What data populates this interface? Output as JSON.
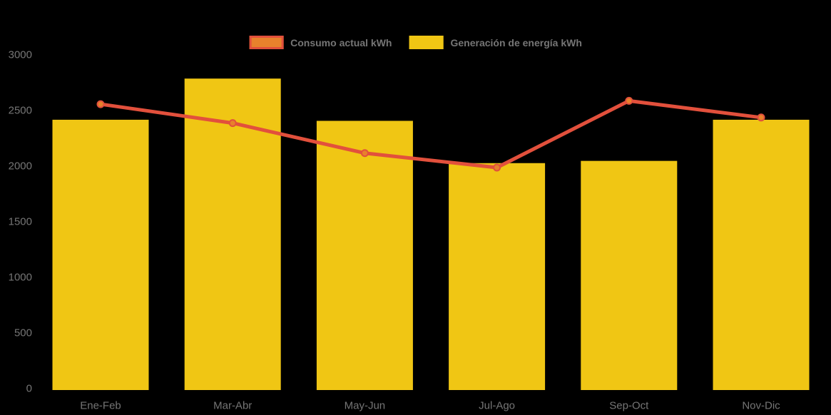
{
  "background_color": "#000000",
  "text_color": "#757575",
  "legend": {
    "items": [
      {
        "label": "Consumo actual kWh",
        "swatch_fill": "#E8812C",
        "swatch_border": "#E2503C"
      },
      {
        "label": "Generación de energía kWh",
        "swatch_fill": "#F0C614",
        "swatch_border": "#F0C614"
      }
    ]
  },
  "chart_data": {
    "type": "bar",
    "categories": [
      "Ene-Feb",
      "Mar-Abr",
      "May-Jun",
      "Jul-Ago",
      "Sep-Oct",
      "Nov-Dic"
    ],
    "series": [
      {
        "name": "Consumo actual kWh",
        "type": "line",
        "values": [
          2570,
          2400,
          2130,
          2000,
          2600,
          2450
        ],
        "line_color": "#E2503C",
        "marker_fill": "#E8812C"
      },
      {
        "name": "Generación de energía kWh",
        "type": "bar",
        "values": [
          2430,
          2800,
          2420,
          2040,
          2060,
          2430
        ],
        "color": "#F0C614"
      }
    ],
    "title": "",
    "xlabel": "",
    "ylabel": "",
    "ylim": [
      0,
      3000
    ],
    "ytick_step": 500,
    "yticks": [
      0,
      500,
      1000,
      1500,
      2000,
      2500,
      3000
    ],
    "grid": false,
    "legend_position": "top-center"
  }
}
